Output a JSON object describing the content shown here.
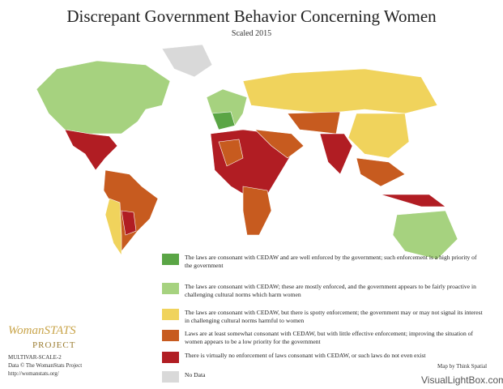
{
  "header": {
    "title": "Discrepant Government Behavior Concerning Women",
    "subtitle": "Scaled 2015"
  },
  "legend": {
    "items": [
      {
        "label": "The laws are consonant with CEDAW and are well enforced by the government; such enforcement is a high priority of the government",
        "color": "#5aa545"
      },
      {
        "label": "The laws are consonant with CEDAW; these are mostly enforced, and the government appears to be fairly proactive in challenging cultural norms which harm women",
        "color": "#a6d27f"
      },
      {
        "label": "The laws are consonant with CEDAW, but there is spotty enforcement; the government may or may not signal its interest in challenging cultural norms harmful to women",
        "color": "#f0d35c"
      },
      {
        "label": "Laws are at least somewhat consonant with CEDAW, but with little effective enforcement; improving the situation of women appears to be a low priority for the government",
        "color": "#c75b1f"
      },
      {
        "label": "There is virtually no enforcement of laws consonant with CEDAW, or such laws do not even exist",
        "color": "#b11d23"
      },
      {
        "label": "No Data",
        "color": "#d9d9d9"
      }
    ]
  },
  "logo": {
    "brand": "WomanSTATS",
    "sub": "PROJECT"
  },
  "footer": {
    "scale": "MULTIVAR-SCALE-2",
    "data": "Data © The WomanStats Project",
    "url": "http://womanstats.org/",
    "credit": "Map by Think Spatial",
    "watermark": "VisualLightBox.com"
  }
}
